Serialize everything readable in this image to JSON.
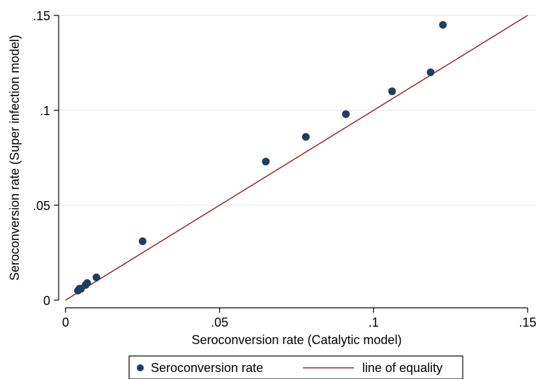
{
  "chart_data": {
    "type": "scatter",
    "title": "",
    "xlabel": "Seroconversion rate (Catalytic model)",
    "ylabel": "Seroconversion rate (Super infection model)",
    "xlim": [
      0,
      0.15
    ],
    "ylim": [
      0,
      0.15
    ],
    "x_ticks": [
      0,
      0.05,
      0.1,
      0.15
    ],
    "x_tick_labels": [
      "0",
      ".05",
      ".1",
      ".15"
    ],
    "y_ticks": [
      0,
      0.05,
      0.1,
      0.15
    ],
    "y_tick_labels": [
      "0",
      ".05",
      ".1",
      ".15"
    ],
    "grid": "horizontal",
    "legend_position": "bottom",
    "series": [
      {
        "name": "Seroconversion rate",
        "kind": "points",
        "color": "#1f3e5e",
        "x": [
          0.004,
          0.0045,
          0.005,
          0.0065,
          0.007,
          0.01,
          0.025,
          0.065,
          0.078,
          0.091,
          0.106,
          0.1185,
          0.1225
        ],
        "y": [
          0.005,
          0.006,
          0.006,
          0.008,
          0.009,
          0.012,
          0.031,
          0.073,
          0.086,
          0.098,
          0.11,
          0.12,
          0.145
        ]
      },
      {
        "name": "line of equality",
        "kind": "line",
        "color": "#8b2a2a",
        "x": [
          0,
          0.15
        ],
        "y": [
          0,
          0.15
        ]
      }
    ]
  }
}
